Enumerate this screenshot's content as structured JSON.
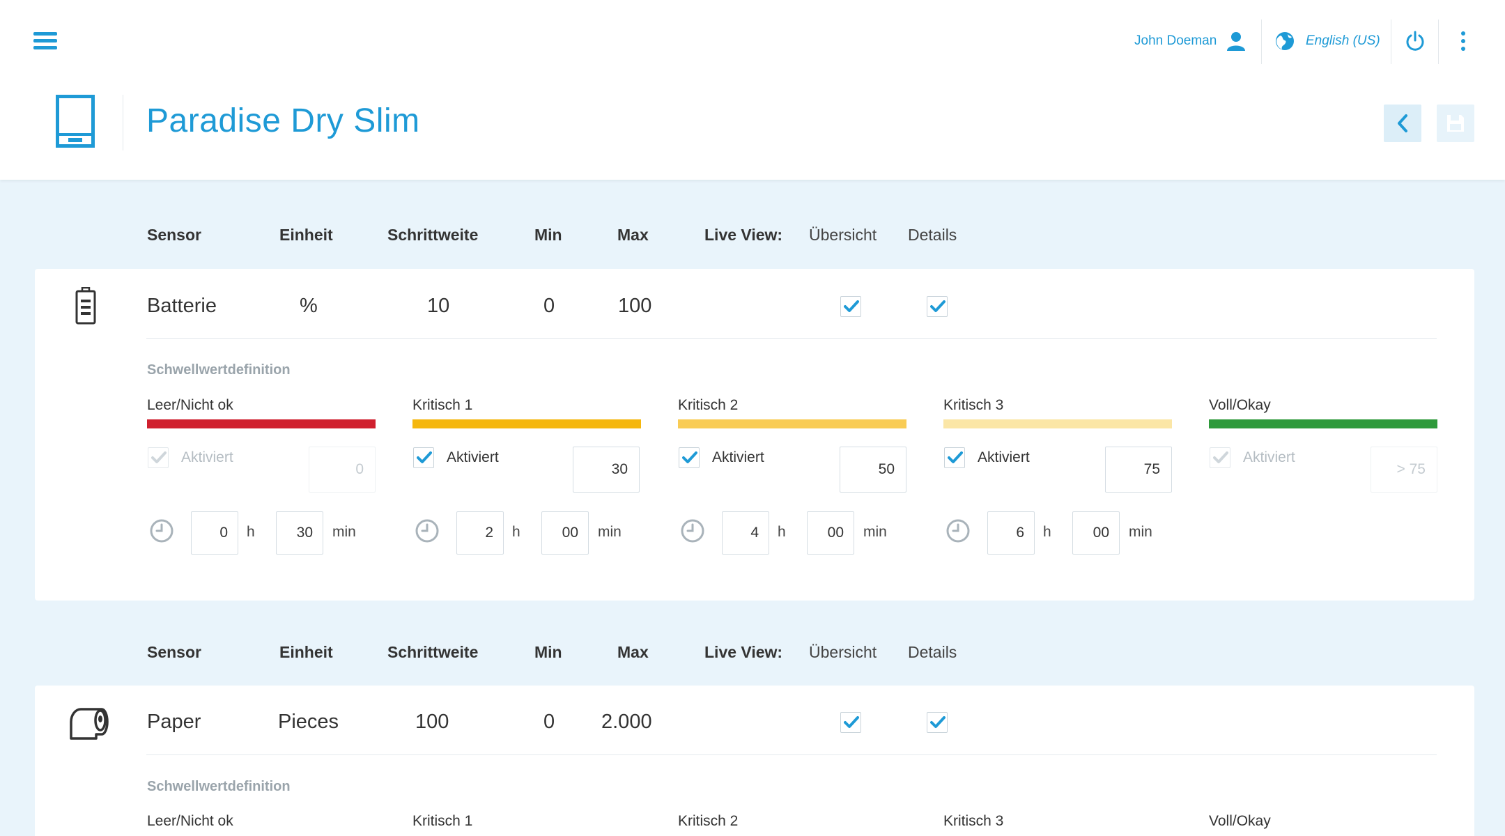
{
  "header": {
    "user_name": "John Doeman",
    "language": "English (US)",
    "page_title": "Paradise Dry Slim",
    "accent_color": "#1e9ad6"
  },
  "columns": {
    "sensor": "Sensor",
    "unit": "Einheit",
    "step": "Schrittweite",
    "min": "Min",
    "max": "Max",
    "live_view": "Live View:",
    "overview": "Übersicht",
    "details": "Details"
  },
  "threshold_section_label": "Schwellwertdefinition",
  "levels": [
    {
      "label": "Leer/Nicht ok",
      "color": "#d0202e"
    },
    {
      "label": "Kritisch 1",
      "color": "#f5b70e"
    },
    {
      "label": "Kritisch 2",
      "color": "#f9cc55"
    },
    {
      "label": "Kritisch 3",
      "color": "#fbe6a6"
    },
    {
      "label": "Voll/Okay",
      "color": "#2e9a3b"
    }
  ],
  "activated_label": "Aktiviert",
  "hours_unit": "h",
  "minutes_unit": "min",
  "sensors": [
    {
      "name": "Batterie",
      "icon": "battery-icon",
      "unit": "%",
      "step": "10",
      "min": "0",
      "max": "100",
      "overview_checked": true,
      "details_checked": true,
      "thresholds": [
        {
          "activated": true,
          "enabled": false,
          "value": "0",
          "hours": "0",
          "minutes": "30"
        },
        {
          "activated": true,
          "enabled": true,
          "value": "30",
          "hours": "2",
          "minutes": "00"
        },
        {
          "activated": true,
          "enabled": true,
          "value": "50",
          "hours": "4",
          "minutes": "00"
        },
        {
          "activated": true,
          "enabled": true,
          "value": "75",
          "hours": "6",
          "minutes": "00"
        },
        {
          "activated": true,
          "enabled": false,
          "value": "> 75"
        }
      ]
    },
    {
      "name": "Paper",
      "icon": "paper-roll-icon",
      "unit": "Pieces",
      "step": "100",
      "min": "0",
      "max": "2.000",
      "overview_checked": true,
      "details_checked": true
    }
  ]
}
